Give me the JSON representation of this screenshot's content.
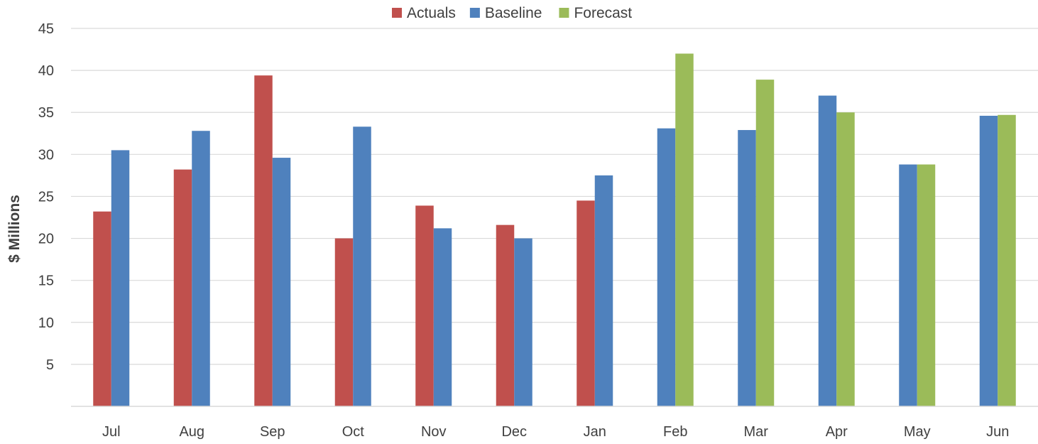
{
  "chart_data": {
    "type": "bar",
    "ylabel": "$ Millions",
    "ylim": [
      0,
      45
    ],
    "yticks": [
      5,
      10,
      15,
      20,
      25,
      30,
      35,
      40,
      45
    ],
    "grid": true,
    "legend_position": "top",
    "categories": [
      "Jul",
      "Aug",
      "Sep",
      "Oct",
      "Nov",
      "Dec",
      "Jan",
      "Feb",
      "Mar",
      "Apr",
      "May",
      "Jun"
    ],
    "series": [
      {
        "name": "Actuals",
        "color": "#C0504D",
        "values": [
          23.2,
          28.2,
          39.4,
          20.0,
          23.9,
          21.6,
          24.5,
          null,
          null,
          null,
          null,
          null
        ]
      },
      {
        "name": "Baseline",
        "color": "#4F81BD",
        "values": [
          30.5,
          32.8,
          29.6,
          33.3,
          21.2,
          20.0,
          27.5,
          33.1,
          32.9,
          37.0,
          28.8,
          34.6
        ]
      },
      {
        "name": "Forecast",
        "color": "#9BBB59",
        "values": [
          null,
          null,
          null,
          null,
          null,
          null,
          null,
          42.0,
          38.9,
          35.0,
          28.8,
          34.7
        ]
      }
    ]
  }
}
